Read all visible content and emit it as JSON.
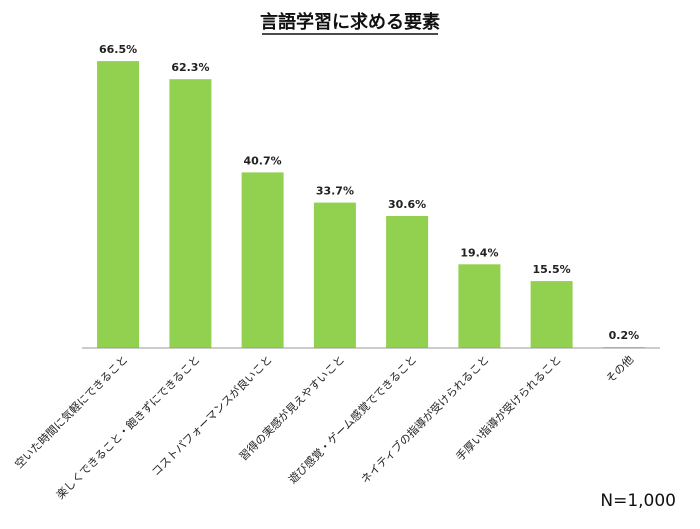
{
  "chart_data": {
    "type": "bar",
    "title": "言語学習に求める要素",
    "categories": [
      "空いた時間に気軽にできること",
      "楽しくできること・飽きずにできること",
      "コストパフォーマンスが良いこと",
      "習得の実感が見えやすいこと",
      "遊び感覚・ゲーム感覚でできること",
      "ネイティブの指導が受けられること",
      "手厚い指導が受けられること",
      "その他"
    ],
    "values": [
      66.5,
      62.3,
      40.7,
      33.7,
      30.6,
      19.4,
      15.5,
      0.2
    ],
    "data_labels": [
      "66.5%",
      "62.3%",
      "40.7%",
      "33.7%",
      "30.6%",
      "19.4%",
      "15.5%",
      "0.2%"
    ],
    "xlabel": "",
    "ylabel": "",
    "ylim": [
      0,
      70
    ],
    "grid": false,
    "legend": "none",
    "bar_color": "#92D050",
    "note": "N=1,000"
  }
}
